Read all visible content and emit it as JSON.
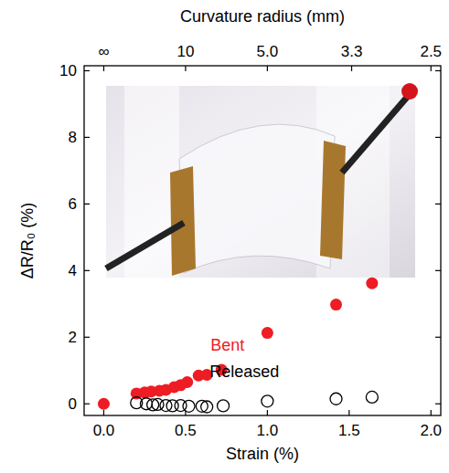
{
  "chart_data": {
    "type": "scatter",
    "xlabel": "Strain (%)",
    "ylabel": "ΔR/R₀ (%)",
    "x2label": "Curvature radius (mm)",
    "xlim": [
      -0.12,
      2.06
    ],
    "ylim": [
      -0.35,
      10.15
    ],
    "xticks": [
      {
        "value": 0,
        "label": "0.0"
      },
      {
        "value": 0.5,
        "label": "0.5"
      },
      {
        "value": 1,
        "label": "1.0"
      },
      {
        "value": 1.5,
        "label": "1.5"
      },
      {
        "value": 2,
        "label": "2.0"
      }
    ],
    "yticks": [
      0,
      2,
      4,
      6,
      8,
      10
    ],
    "x2_factor": 5,
    "x2ticks": [
      {
        "value": null,
        "label": "∞"
      },
      10,
      {
        "value": 5,
        "label": "5.0"
      },
      3.3,
      2.5
    ],
    "series": [
      {
        "name": "Bent",
        "color": "#ee1c24",
        "marker": "filled-circle",
        "x": [
          0,
          0.2,
          0.25,
          0.29,
          0.34,
          0.38,
          0.43,
          0.47,
          0.51,
          0.58,
          0.63,
          0.72,
          1.0,
          1.42,
          1.64
        ],
        "values": [
          0,
          0.31,
          0.34,
          0.37,
          0.39,
          0.42,
          0.5,
          0.56,
          0.65,
          0.85,
          0.87,
          1.02,
          2.13,
          2.98,
          3.62
        ]
      },
      {
        "name": "Released",
        "color": "#000000",
        "marker": "open-circle",
        "x": [
          0.2,
          0.26,
          0.3,
          0.33,
          0.38,
          0.42,
          0.47,
          0.52,
          0.6,
          0.63,
          0.73,
          1.0,
          1.42,
          1.64
        ],
        "values": [
          0.03,
          0,
          -0.03,
          -0.02,
          -0.05,
          -0.06,
          -0.05,
          -0.07,
          -0.07,
          -0.09,
          -0.06,
          0.08,
          0.15,
          0.2
        ]
      }
    ]
  }
}
